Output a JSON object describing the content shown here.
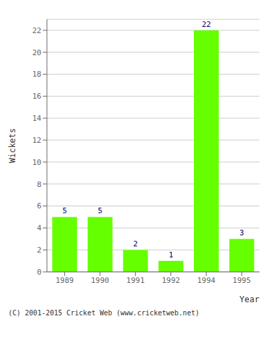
{
  "chart_data": {
    "type": "bar",
    "categories": [
      "1989",
      "1990",
      "1991",
      "1992",
      "1994",
      "1995"
    ],
    "values": [
      5,
      5,
      2,
      1,
      22,
      3
    ],
    "color": "#66ff00",
    "ylabel": "Wickets",
    "xlabel": "Year",
    "ylim": [
      0,
      23
    ],
    "yticks": [
      0,
      2,
      4,
      6,
      8,
      10,
      12,
      14,
      16,
      18,
      20,
      22
    ],
    "grid": true,
    "data_labels": true,
    "annotations": [
      "(C) 2001-2015 Cricket Web (www.cricketweb.net)"
    ]
  }
}
